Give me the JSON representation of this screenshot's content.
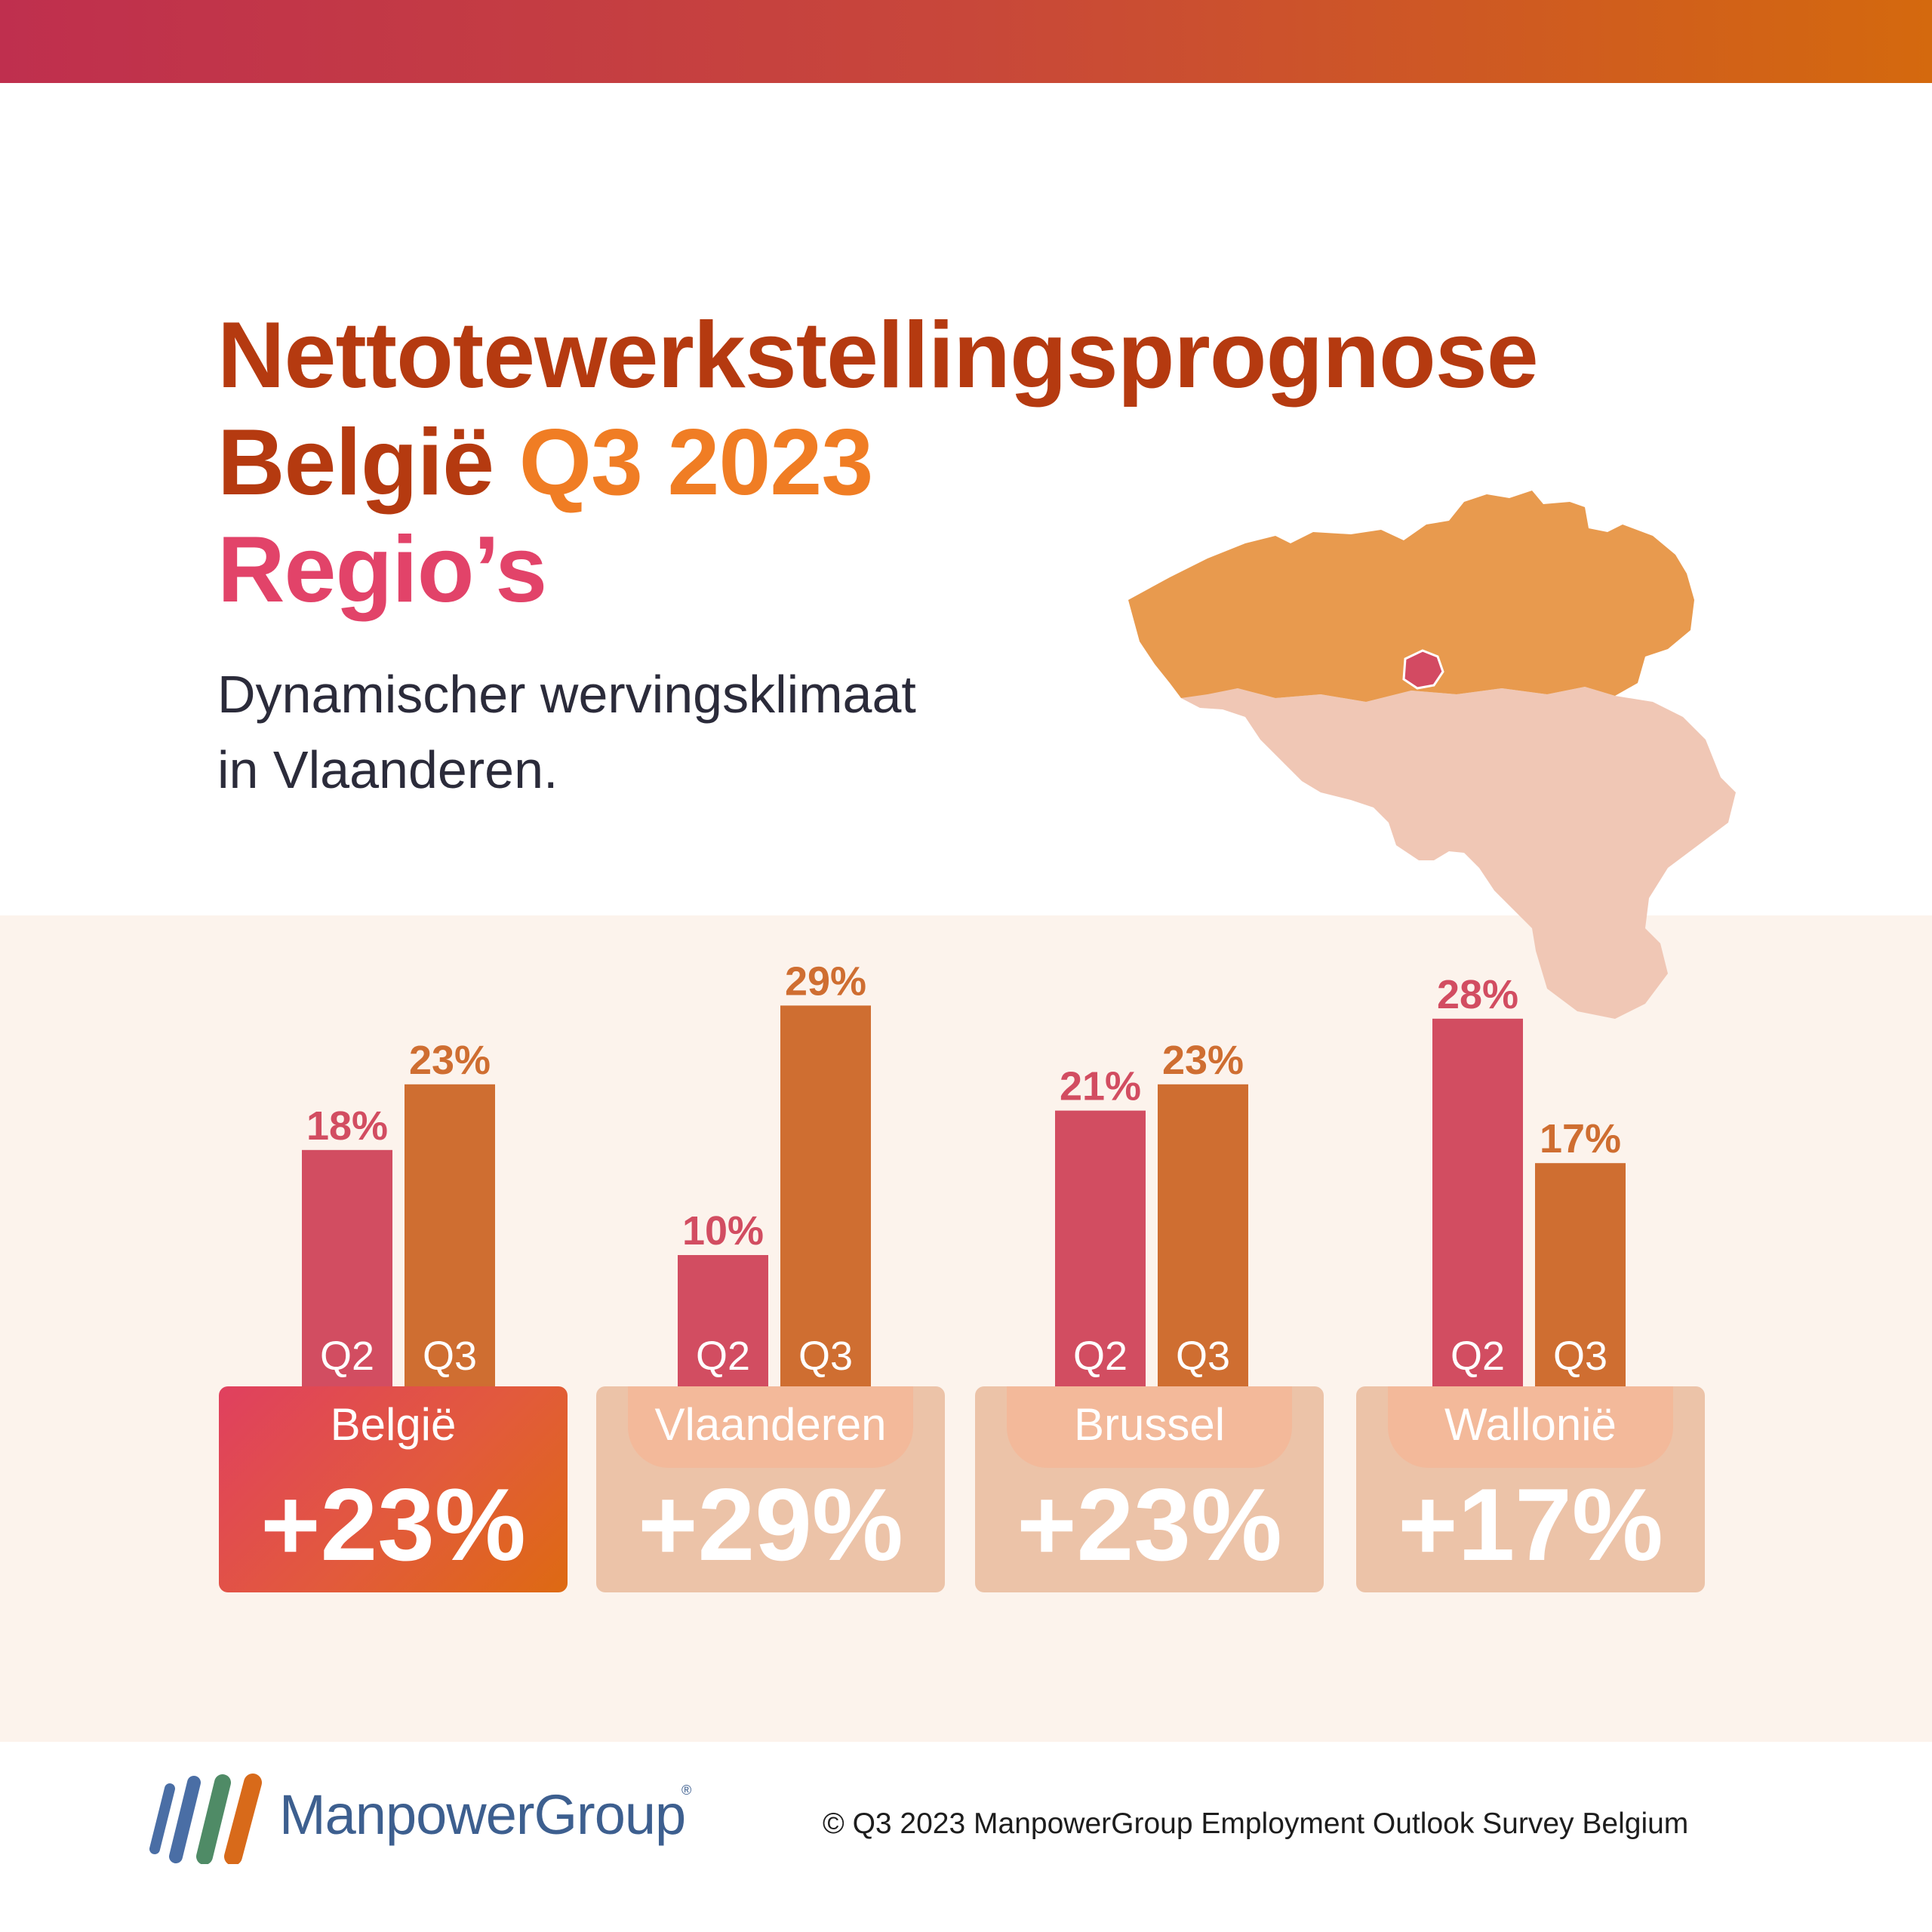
{
  "header": {
    "title_line1": "Nettotewerkstellingsprognose",
    "title_line2_prefix": "België",
    "title_line2_accent": "Q3 2023",
    "title_line3": "Regio’s",
    "subtitle_line1": "Dynamischer wervingsklimaat",
    "subtitle_line2": "in Vlaanderen."
  },
  "map": {
    "regions": [
      "Vlaanderen",
      "Brussel",
      "Wallonië"
    ],
    "colors": {
      "Vlaanderen": "#e89a4e",
      "Brussel": "#d34a62",
      "Wallonië": "#f0c7b5"
    }
  },
  "chart_data": {
    "type": "bar",
    "categories": [
      "België",
      "Vlaanderen",
      "Brussel",
      "Wallonië"
    ],
    "series": [
      {
        "name": "Q2",
        "values": [
          18,
          10,
          21,
          28
        ],
        "color": "#d24d61"
      },
      {
        "name": "Q3",
        "values": [
          23,
          29,
          23,
          17
        ],
        "color": "#cf6e31"
      }
    ],
    "value_suffix": "%",
    "totals": [
      "+23%",
      "+29%",
      "+23%",
      "+17%"
    ],
    "ylim": [
      0,
      30
    ]
  },
  "footer": {
    "brand": "ManpowerGroup",
    "registered_mark": "®",
    "copyright": "© Q3 2023 ManpowerGroup Employment Outlook Survey Belgium"
  }
}
